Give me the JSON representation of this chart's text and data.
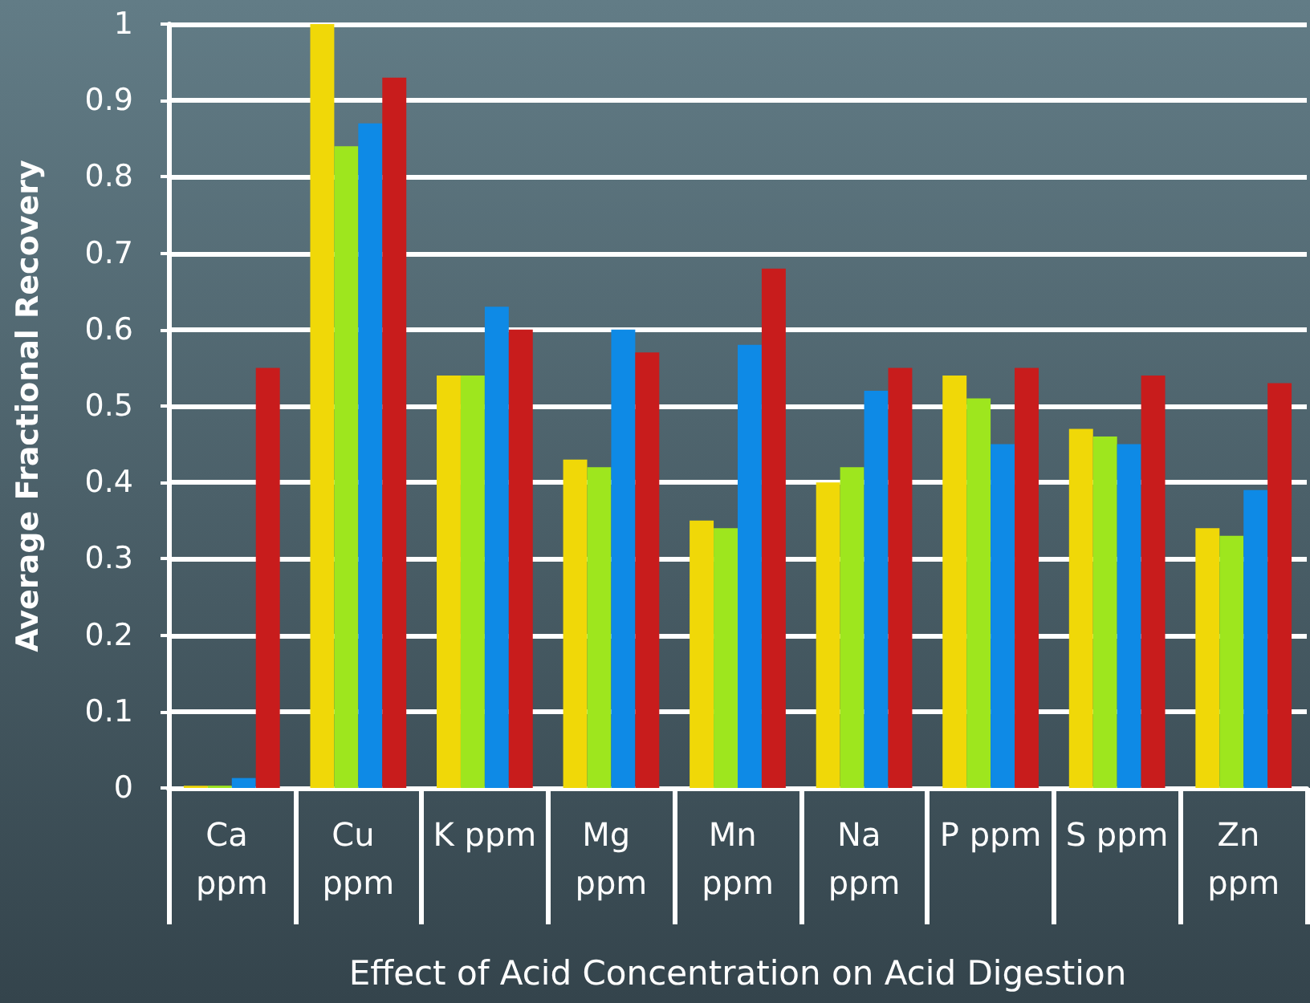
{
  "chart_data": {
    "type": "bar",
    "xlabel": "Effect of Acid Concentration on Acid Digestion",
    "ylabel": "Average Fractional Recovery",
    "categories": [
      "Ca ppm",
      "Cu ppm",
      "K ppm",
      "Mg ppm",
      "Mn ppm",
      "Na ppm",
      "P ppm",
      "S ppm",
      "Zn ppm"
    ],
    "series": [
      {
        "color": "#f0d808",
        "values": [
          0.003,
          1.0,
          0.54,
          0.43,
          0.35,
          0.4,
          0.54,
          0.47,
          0.34
        ]
      },
      {
        "color": "#9ee61e",
        "values": [
          0.003,
          0.84,
          0.54,
          0.42,
          0.34,
          0.42,
          0.51,
          0.46,
          0.33
        ]
      },
      {
        "color": "#0e8ae6",
        "values": [
          0.013,
          0.87,
          0.63,
          0.6,
          0.58,
          0.52,
          0.45,
          0.45,
          0.39
        ]
      },
      {
        "color": "#c81c1c",
        "values": [
          0.55,
          0.93,
          0.6,
          0.57,
          0.68,
          0.55,
          0.55,
          0.54,
          0.53
        ]
      }
    ],
    "ylim": [
      0,
      1
    ],
    "yticks": [
      0,
      0.1,
      0.2,
      0.3,
      0.4,
      0.5,
      0.6,
      0.7,
      0.8,
      0.9,
      1
    ],
    "grid": "y"
  }
}
